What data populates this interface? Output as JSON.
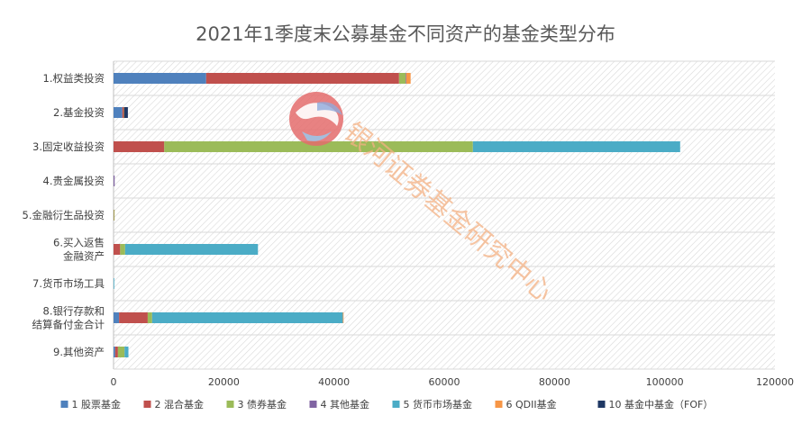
{
  "chart_data": {
    "type": "bar",
    "orientation": "horizontal",
    "stacked": true,
    "title": "2021年1季度末公募基金不同资产的基金类型分布",
    "categories": [
      [
        "1.权益类投资"
      ],
      [
        "2.基金投资"
      ],
      [
        "3.固定收益投资"
      ],
      [
        "4.贵金属投资"
      ],
      [
        "5.金融衍生品投资"
      ],
      [
        "6.买入返售",
        "金融资产"
      ],
      [
        "7.货币市场工具"
      ],
      [
        "8.银行存款和",
        "结算备付金合计"
      ],
      [
        "9.其他资产"
      ]
    ],
    "series": [
      {
        "name": "1 股票基金",
        "color": "#4f81bd",
        "values": [
          16800,
          1600,
          0,
          0,
          0,
          0,
          0,
          1000,
          300
        ]
      },
      {
        "name": "2 混合基金",
        "color": "#c0504d",
        "values": [
          35000,
          200,
          9200,
          0,
          50,
          1200,
          0,
          5200,
          500
        ]
      },
      {
        "name": "3 债券基金",
        "color": "#9bbb59",
        "values": [
          1200,
          0,
          56000,
          0,
          50,
          900,
          0,
          800,
          1200
        ]
      },
      {
        "name": "4 其他基金",
        "color": "#8064a2",
        "values": [
          100,
          0,
          0,
          200,
          0,
          0,
          0,
          0,
          0
        ]
      },
      {
        "name": "5 货币市场基金",
        "color": "#4bacc6",
        "values": [
          0,
          0,
          37600,
          0,
          0,
          24100,
          100,
          34600,
          700
        ]
      },
      {
        "name": "6 QDII基金",
        "color": "#f79646",
        "values": [
          800,
          100,
          0,
          0,
          0,
          0,
          0,
          100,
          0
        ]
      },
      {
        "name": "10 基金中基金（FOF）",
        "color": "#1f3864",
        "values": [
          0,
          700,
          0,
          0,
          0,
          0,
          0,
          0,
          0
        ]
      }
    ],
    "x_ticks": [
      0,
      20000,
      40000,
      60000,
      80000,
      100000,
      120000
    ],
    "xlim": [
      0,
      120000
    ],
    "grid": true,
    "legend_position": "bottom",
    "watermark": "银河证券基金研究中心"
  }
}
